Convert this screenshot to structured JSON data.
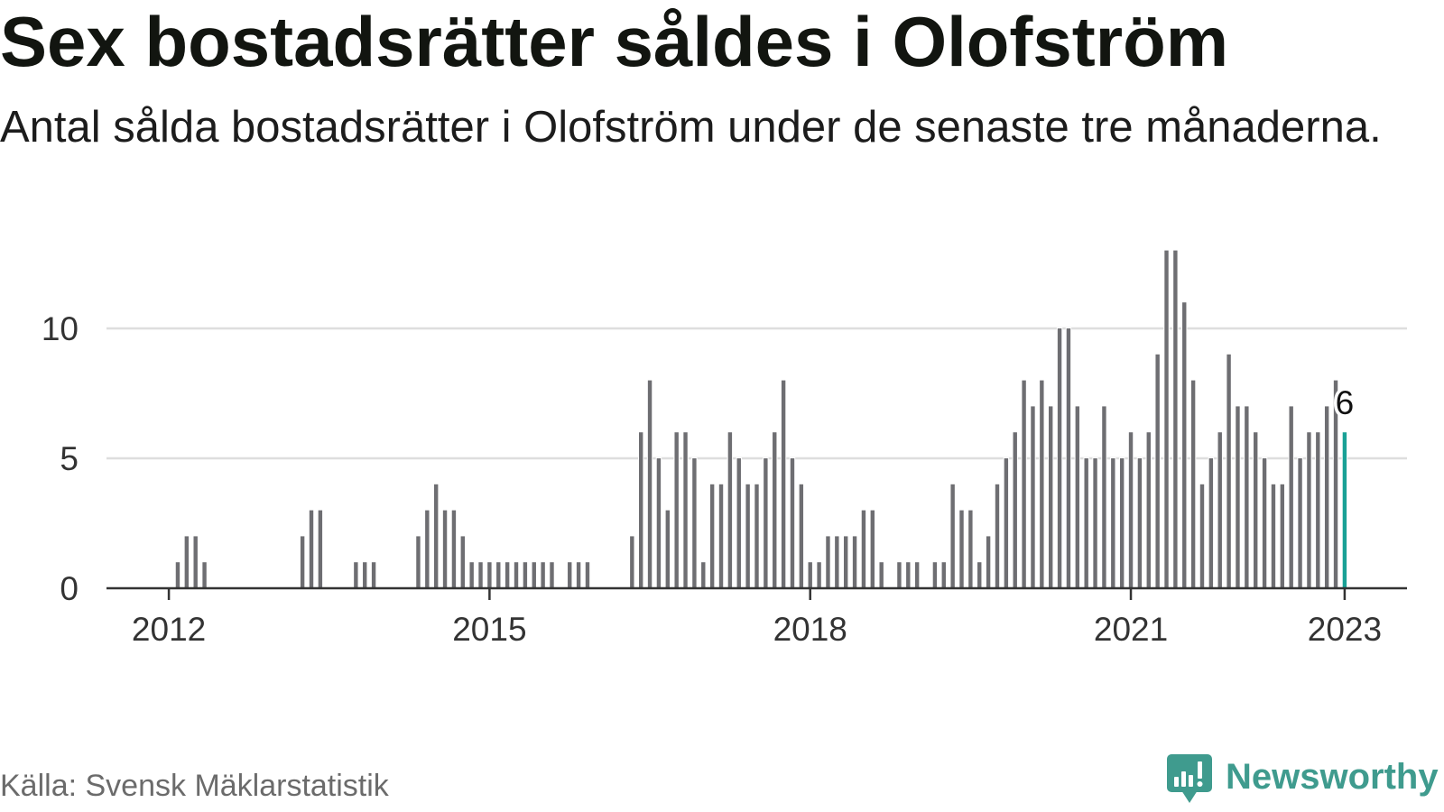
{
  "chart_data": {
    "type": "bar",
    "title": "Sex bostadsrätter såldes i Olofström",
    "subtitle": "Antal sålda bostadsrätter i Olofström under de senaste tre månaderna.",
    "source": "Källa: Svensk Mäklarstatistik",
    "x": [
      "2012-01",
      "2012-02",
      "2012-03",
      "2012-04",
      "2012-05",
      "2012-06",
      "2012-07",
      "2012-08",
      "2012-09",
      "2012-10",
      "2012-11",
      "2012-12",
      "2013-01",
      "2013-02",
      "2013-03",
      "2013-04",
      "2013-05",
      "2013-06",
      "2013-07",
      "2013-08",
      "2013-09",
      "2013-10",
      "2013-11",
      "2013-12",
      "2014-01",
      "2014-02",
      "2014-03",
      "2014-04",
      "2014-05",
      "2014-06",
      "2014-07",
      "2014-08",
      "2014-09",
      "2014-10",
      "2014-11",
      "2014-12",
      "2015-01",
      "2015-02",
      "2015-03",
      "2015-04",
      "2015-05",
      "2015-06",
      "2015-07",
      "2015-08",
      "2015-09",
      "2015-10",
      "2015-11",
      "2015-12",
      "2016-01",
      "2016-02",
      "2016-03",
      "2016-04",
      "2016-05",
      "2016-06",
      "2016-07",
      "2016-08",
      "2016-09",
      "2016-10",
      "2016-11",
      "2016-12",
      "2017-01",
      "2017-02",
      "2017-03",
      "2017-04",
      "2017-05",
      "2017-06",
      "2017-07",
      "2017-08",
      "2017-09",
      "2017-10",
      "2017-11",
      "2017-12",
      "2018-01",
      "2018-02",
      "2018-03",
      "2018-04",
      "2018-05",
      "2018-06",
      "2018-07",
      "2018-08",
      "2018-09",
      "2018-10",
      "2018-11",
      "2018-12",
      "2019-01",
      "2019-02",
      "2019-03",
      "2019-04",
      "2019-05",
      "2019-06",
      "2019-07",
      "2019-08",
      "2019-09",
      "2019-10",
      "2019-11",
      "2019-12",
      "2020-01",
      "2020-02",
      "2020-03",
      "2020-04",
      "2020-05",
      "2020-06",
      "2020-07",
      "2020-08",
      "2020-09",
      "2020-10",
      "2020-11",
      "2020-12",
      "2021-01",
      "2021-02",
      "2021-03",
      "2021-04",
      "2021-05",
      "2021-06",
      "2021-07",
      "2021-08",
      "2021-09",
      "2021-10",
      "2021-11",
      "2021-12",
      "2022-01",
      "2022-02",
      "2022-03",
      "2022-04",
      "2022-05",
      "2022-06",
      "2022-07",
      "2022-08",
      "2022-09",
      "2022-10",
      "2022-11",
      "2022-12",
      "2023-01"
    ],
    "values": [
      0,
      1,
      2,
      2,
      1,
      0,
      0,
      0,
      0,
      0,
      0,
      0,
      0,
      0,
      0,
      2,
      3,
      3,
      0,
      0,
      0,
      1,
      1,
      1,
      0,
      0,
      0,
      0,
      2,
      3,
      4,
      3,
      3,
      2,
      1,
      1,
      1,
      1,
      1,
      1,
      1,
      1,
      1,
      1,
      0,
      1,
      1,
      1,
      0,
      0,
      0,
      0,
      2,
      6,
      8,
      5,
      3,
      6,
      6,
      5,
      1,
      4,
      4,
      6,
      5,
      4,
      4,
      5,
      6,
      8,
      5,
      4,
      1,
      1,
      2,
      2,
      2,
      2,
      3,
      3,
      1,
      0,
      1,
      1,
      1,
      0,
      1,
      1,
      4,
      3,
      3,
      1,
      2,
      4,
      5,
      6,
      8,
      7,
      8,
      7,
      10,
      10,
      7,
      5,
      5,
      7,
      5,
      5,
      6,
      5,
      6,
      9,
      13,
      13,
      11,
      8,
      4,
      5,
      6,
      9,
      7,
      7,
      6,
      5,
      4,
      4,
      7,
      5,
      6,
      6,
      7,
      8,
      6
    ],
    "highlight": {
      "x": "2023-01",
      "label": "6"
    },
    "xticks": [
      {
        "x": "2012-01",
        "label": "2012"
      },
      {
        "x": "2015-01",
        "label": "2015"
      },
      {
        "x": "2018-01",
        "label": "2018"
      },
      {
        "x": "2021-01",
        "label": "2021"
      },
      {
        "x": "2023-01",
        "label": "2023"
      }
    ],
    "yticks": [
      0,
      5,
      10
    ],
    "xlim": [
      "2011-06",
      "2023-08"
    ],
    "ylim": [
      0,
      13
    ],
    "grid": "horizontal",
    "legend": "none"
  },
  "brand": {
    "name": "Newsworthy",
    "icon": "newsworthy-logo-icon"
  },
  "colors": {
    "bar": "#6e6e72",
    "highlight": "#19a196",
    "grid": "#dedede",
    "axis": "#333333",
    "brand": "#3f9b8e"
  }
}
